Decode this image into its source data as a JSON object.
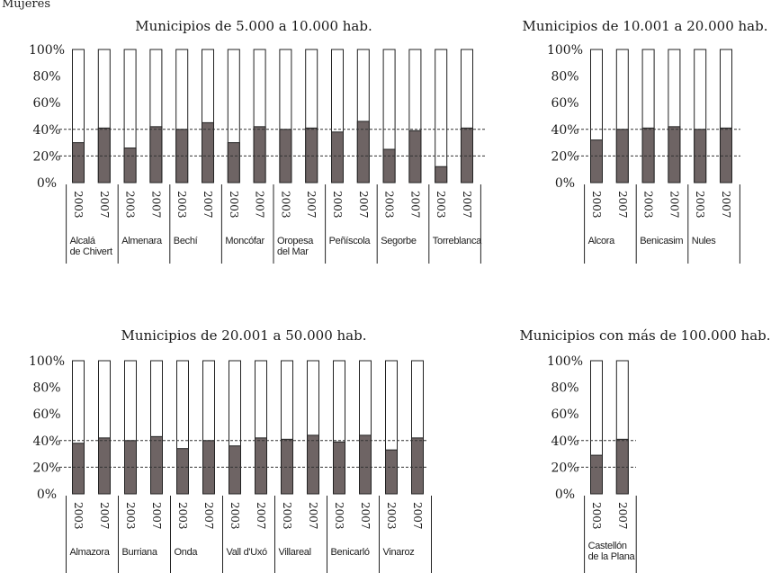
{
  "figure_label": "Mujeres",
  "colors": {
    "bar_fill": "#6e6464",
    "bar_border": "#222222",
    "guide_line": "#333333"
  },
  "chart_data": [
    {
      "type": "bar",
      "title": "Municipios de 5.000 a 10.000 hab.",
      "ylim": [
        0,
        100
      ],
      "yticks": [
        "0%",
        "20%",
        "40%",
        "60%",
        "80%",
        "100%"
      ],
      "guide_lines": [
        20,
        40
      ],
      "groups": [
        {
          "name": "Alcalá\nde Chivert",
          "years": [
            "2003",
            "2007"
          ],
          "values": [
            30,
            41
          ]
        },
        {
          "name": "Almenara",
          "years": [
            "2003",
            "2007"
          ],
          "values": [
            26,
            42
          ]
        },
        {
          "name": "Bechí",
          "years": [
            "2003",
            "2007"
          ],
          "values": [
            40,
            45
          ]
        },
        {
          "name": "Moncófar",
          "years": [
            "2003",
            "2007"
          ],
          "values": [
            30,
            42
          ]
        },
        {
          "name": "Oropesa\ndel Mar",
          "years": [
            "2003",
            "2007"
          ],
          "values": [
            40,
            41
          ]
        },
        {
          "name": "Peñíscola",
          "years": [
            "2003",
            "2007"
          ],
          "values": [
            38,
            46
          ]
        },
        {
          "name": "Segorbe",
          "years": [
            "2003",
            "2007"
          ],
          "values": [
            25,
            39
          ]
        },
        {
          "name": "Torreblanca",
          "years": [
            "2003",
            "2007"
          ],
          "values": [
            12,
            41
          ]
        }
      ]
    },
    {
      "type": "bar",
      "title": "Municipios de 10.001 a 20.000 hab.",
      "ylim": [
        0,
        100
      ],
      "yticks": [
        "0%",
        "20%",
        "40%",
        "60%",
        "80%",
        "100%"
      ],
      "guide_lines": [
        20,
        40
      ],
      "groups": [
        {
          "name": "Alcora",
          "years": [
            "2003",
            "2007"
          ],
          "values": [
            32,
            40
          ]
        },
        {
          "name": "Benicasim",
          "years": [
            "2003",
            "2007"
          ],
          "values": [
            41,
            42
          ]
        },
        {
          "name": "Nules",
          "years": [
            "2003",
            "2007"
          ],
          "values": [
            40,
            41
          ]
        }
      ]
    },
    {
      "type": "bar",
      "title": "Municipios de 20.001 a 50.000 hab.",
      "ylim": [
        0,
        100
      ],
      "yticks": [
        "0%",
        "20%",
        "40%",
        "60%",
        "80%",
        "100%"
      ],
      "guide_lines": [
        20,
        40
      ],
      "groups": [
        {
          "name": "Almazora",
          "years": [
            "2003",
            "2007"
          ],
          "values": [
            38,
            42
          ]
        },
        {
          "name": "Burriana",
          "years": [
            "2003",
            "2007"
          ],
          "values": [
            40,
            43
          ]
        },
        {
          "name": "Onda",
          "years": [
            "2003",
            "2007"
          ],
          "values": [
            34,
            40
          ]
        },
        {
          "name": "Vall d'Uxó",
          "years": [
            "2003",
            "2007"
          ],
          "values": [
            36,
            42
          ]
        },
        {
          "name": "Villareal",
          "years": [
            "2003",
            "2007"
          ],
          "values": [
            41,
            44
          ]
        },
        {
          "name": "Benicarló",
          "years": [
            "2003",
            "2007"
          ],
          "values": [
            39,
            44
          ]
        },
        {
          "name": "Vinaroz",
          "years": [
            "2003",
            "2007"
          ],
          "values": [
            33,
            42
          ]
        }
      ]
    },
    {
      "type": "bar",
      "title": "Municipios con más de 100.000 hab.",
      "ylim": [
        0,
        100
      ],
      "yticks": [
        "0%",
        "20%",
        "40%",
        "60%",
        "80%",
        "100%"
      ],
      "guide_lines": [
        20,
        40
      ],
      "groups": [
        {
          "name": "Castellón\nde la Plana",
          "years": [
            "2003",
            "2007"
          ],
          "values": [
            29,
            41
          ]
        }
      ]
    }
  ]
}
